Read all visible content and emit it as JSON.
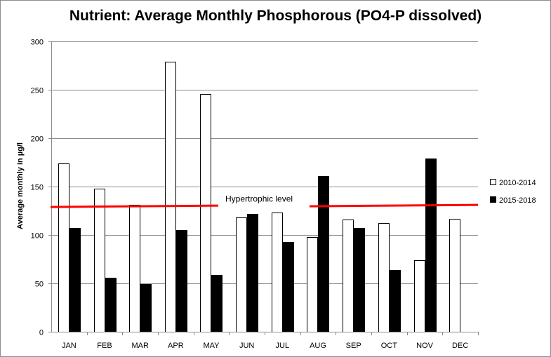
{
  "chart_data": {
    "type": "bar",
    "title": "Nutrient: Average Monthly Phosphorous (PO4-P dissolved)",
    "xlabel": "",
    "ylabel": "Average monthly in µg/l",
    "ylim": [
      0,
      300
    ],
    "yticks": [
      0,
      50,
      100,
      150,
      200,
      250,
      300
    ],
    "categories": [
      "JAN",
      "FEB",
      "MAR",
      "APR",
      "MAY",
      "JUN",
      "JUL",
      "AUG",
      "SEP",
      "OCT",
      "NOV",
      "DEC"
    ],
    "series": [
      {
        "name": "2010-2014",
        "color": "#ffffff",
        "values": [
          174,
          148,
          131,
          279,
          246,
          118,
          123,
          98,
          116,
          112,
          74,
          117
        ]
      },
      {
        "name": "2015-2018",
        "color": "#000000",
        "values": [
          107,
          56,
          49,
          105,
          59,
          122,
          93,
          161,
          107,
          64,
          179,
          null
        ]
      }
    ],
    "grid": true,
    "legend_position": "right",
    "threshold": {
      "label": "Hypertrophic level",
      "value": 130,
      "color": "#ff0000"
    }
  }
}
